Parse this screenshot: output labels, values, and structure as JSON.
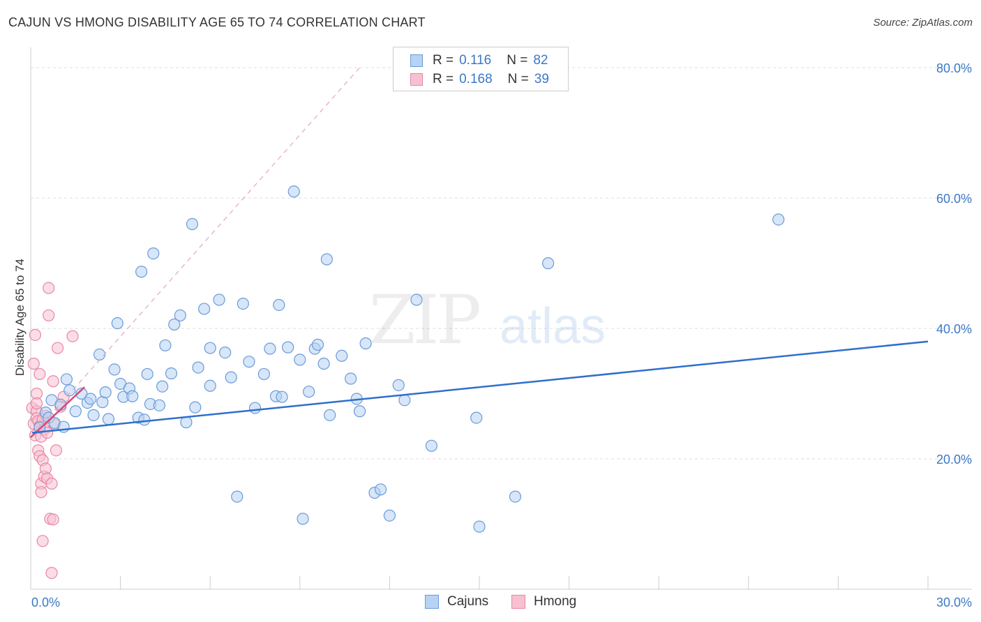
{
  "title": "CAJUN VS HMONG DISABILITY AGE 65 TO 74 CORRELATION CHART",
  "source": "Source: ZipAtlas.com",
  "watermark": {
    "zip": "ZIP",
    "atlas": "atlas"
  },
  "legend": {
    "rows": [
      {
        "r_label": "R =",
        "r_value": "0.116",
        "n_label": "N =",
        "n_value": "82"
      },
      {
        "r_label": "R =",
        "r_value": "0.168",
        "n_label": "N =",
        "n_value": "39"
      }
    ]
  },
  "bottom_legend": {
    "cajuns": "Cajuns",
    "hmong": "Hmong"
  },
  "colors": {
    "cajun_fill": "#b7d2f3",
    "cajun_stroke": "#6a9bd8",
    "cajun_line": "#2e6fcc",
    "hmong_fill": "#f7c1d1",
    "hmong_stroke": "#e887a6",
    "hmong_line": "#d9477a",
    "axis_text": "#3b78c4",
    "grid": "#dddddd"
  },
  "chart_data": {
    "type": "scatter",
    "title": "CAJUN VS HMONG DISABILITY AGE 65 TO 74 CORRELATION CHART",
    "xlabel": "",
    "ylabel": "Disability Age 65 to 74",
    "xlim": [
      0,
      30
    ],
    "ylim": [
      0,
      80
    ],
    "x_tick_labels": [
      "0.0%",
      "30.0%"
    ],
    "y_ticks": [
      20,
      40,
      60,
      80
    ],
    "y_tick_labels": [
      "20.0%",
      "40.0%",
      "60.0%",
      "80.0%"
    ],
    "series": [
      {
        "name": "Cajuns",
        "R": 0.116,
        "N": 82,
        "trend": {
          "x": [
            0,
            30
          ],
          "y": [
            24.0,
            38.0
          ]
        },
        "points": [
          [
            0.3,
            24.8
          ],
          [
            0.5,
            27.1
          ],
          [
            0.6,
            26.3
          ],
          [
            0.7,
            29.0
          ],
          [
            0.8,
            25.5
          ],
          [
            1.0,
            28.3
          ],
          [
            1.1,
            24.9
          ],
          [
            1.3,
            30.5
          ],
          [
            1.5,
            27.3
          ],
          [
            1.7,
            30.0
          ],
          [
            1.9,
            28.6
          ],
          [
            2.0,
            29.2
          ],
          [
            2.1,
            26.7
          ],
          [
            2.3,
            36.0
          ],
          [
            2.4,
            28.7
          ],
          [
            2.5,
            30.2
          ],
          [
            2.6,
            26.1
          ],
          [
            2.9,
            40.8
          ],
          [
            3.0,
            31.5
          ],
          [
            3.1,
            29.5
          ],
          [
            3.3,
            30.8
          ],
          [
            3.4,
            29.6
          ],
          [
            3.6,
            26.3
          ],
          [
            3.7,
            48.7
          ],
          [
            3.8,
            26.0
          ],
          [
            3.9,
            33.0
          ],
          [
            4.0,
            28.4
          ],
          [
            4.1,
            51.5
          ],
          [
            4.3,
            28.2
          ],
          [
            4.4,
            31.1
          ],
          [
            4.5,
            37.4
          ],
          [
            4.7,
            33.1
          ],
          [
            4.8,
            40.6
          ],
          [
            5.0,
            42.0
          ],
          [
            5.2,
            25.6
          ],
          [
            5.4,
            56.0
          ],
          [
            5.5,
            27.9
          ],
          [
            5.6,
            34.0
          ],
          [
            5.8,
            43.0
          ],
          [
            6.0,
            31.2
          ],
          [
            6.3,
            44.4
          ],
          [
            6.5,
            36.3
          ],
          [
            6.7,
            32.5
          ],
          [
            6.9,
            14.2
          ],
          [
            7.1,
            43.8
          ],
          [
            7.3,
            34.9
          ],
          [
            7.5,
            27.8
          ],
          [
            7.8,
            33.0
          ],
          [
            8.0,
            36.9
          ],
          [
            8.2,
            29.6
          ],
          [
            8.3,
            43.6
          ],
          [
            8.4,
            29.5
          ],
          [
            8.6,
            37.1
          ],
          [
            8.8,
            61.0
          ],
          [
            9.0,
            35.2
          ],
          [
            9.1,
            10.8
          ],
          [
            9.3,
            30.3
          ],
          [
            9.5,
            36.9
          ],
          [
            9.6,
            37.5
          ],
          [
            9.8,
            34.6
          ],
          [
            9.9,
            50.6
          ],
          [
            10.4,
            35.8
          ],
          [
            10.7,
            32.3
          ],
          [
            10.9,
            29.2
          ],
          [
            11.0,
            27.3
          ],
          [
            11.2,
            37.7
          ],
          [
            11.5,
            14.8
          ],
          [
            11.7,
            15.3
          ],
          [
            12.0,
            11.3
          ],
          [
            12.3,
            31.3
          ],
          [
            12.9,
            44.4
          ],
          [
            13.4,
            22.0
          ],
          [
            14.9,
            26.3
          ],
          [
            15.0,
            9.6
          ],
          [
            16.2,
            14.2
          ],
          [
            17.3,
            50.0
          ],
          [
            25.0,
            56.7
          ],
          [
            1.2,
            32.2
          ],
          [
            2.8,
            33.7
          ],
          [
            6.0,
            37.0
          ],
          [
            10.0,
            26.7
          ],
          [
            12.5,
            29.0
          ]
        ]
      },
      {
        "name": "Hmong",
        "R": 0.168,
        "N": 39,
        "trend": {
          "x": [
            0,
            1.8
          ],
          "y": [
            23.3,
            31.0
          ]
        },
        "trend_dashed": {
          "x": [
            0,
            11.0
          ],
          "y": [
            23.3,
            80.0
          ]
        },
        "points": [
          [
            0.05,
            27.8
          ],
          [
            0.1,
            25.4
          ],
          [
            0.1,
            34.6
          ],
          [
            0.15,
            23.6
          ],
          [
            0.15,
            39.0
          ],
          [
            0.2,
            27.3
          ],
          [
            0.2,
            26.2
          ],
          [
            0.2,
            30.0
          ],
          [
            0.25,
            21.3
          ],
          [
            0.25,
            25.8
          ],
          [
            0.3,
            20.4
          ],
          [
            0.3,
            33.0
          ],
          [
            0.3,
            25.0
          ],
          [
            0.35,
            16.2
          ],
          [
            0.35,
            14.9
          ],
          [
            0.35,
            23.4
          ],
          [
            0.4,
            19.8
          ],
          [
            0.4,
            7.4
          ],
          [
            0.45,
            24.5
          ],
          [
            0.45,
            17.3
          ],
          [
            0.5,
            18.5
          ],
          [
            0.5,
            26.6
          ],
          [
            0.55,
            17.0
          ],
          [
            0.6,
            46.2
          ],
          [
            0.6,
            42.0
          ],
          [
            0.65,
            10.8
          ],
          [
            0.7,
            16.2
          ],
          [
            0.7,
            2.5
          ],
          [
            0.75,
            10.7
          ],
          [
            0.75,
            31.9
          ],
          [
            0.8,
            25.3
          ],
          [
            0.85,
            21.3
          ],
          [
            0.9,
            37.0
          ],
          [
            1.0,
            28.0
          ],
          [
            1.1,
            29.5
          ],
          [
            1.4,
            38.8
          ],
          [
            0.2,
            28.5
          ],
          [
            0.4,
            26.0
          ],
          [
            0.55,
            24.0
          ]
        ]
      }
    ]
  }
}
